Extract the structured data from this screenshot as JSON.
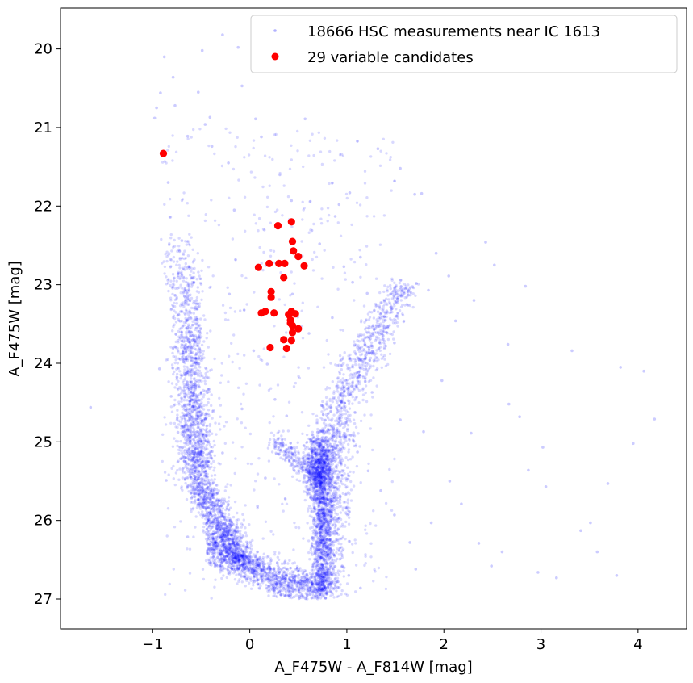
{
  "chart_data": {
    "type": "scatter",
    "xlabel": "A_F475W - A_F814W [mag]",
    "ylabel": "A_F475W [mag]",
    "xlim": [
      -1.95,
      4.5
    ],
    "ylim": [
      27.38,
      19.48
    ],
    "y_inverted": true,
    "grid": false,
    "x_ticks": [
      -1,
      0,
      1,
      2,
      3,
      4
    ],
    "x_tick_labels": [
      "−1",
      "0",
      "1",
      "2",
      "3",
      "4"
    ],
    "y_ticks": [
      20,
      21,
      22,
      23,
      24,
      25,
      26,
      27
    ],
    "y_tick_labels": [
      "20",
      "21",
      "22",
      "23",
      "24",
      "25",
      "26",
      "27"
    ],
    "legend_position": "top-right",
    "series": [
      {
        "name": "18666 HSC measurements near IC 1613",
        "color": "#0000ff",
        "marker": "point",
        "alpha": 0.15,
        "count": 18666,
        "sampled_points": [
          [
            -1.64,
            24.56
          ],
          [
            4.17,
            24.71
          ],
          [
            4.06,
            24.1
          ],
          [
            3.82,
            24.05
          ],
          [
            3.58,
            26.4
          ],
          [
            3.78,
            26.7
          ],
          [
            3.41,
            26.13
          ],
          [
            3.51,
            26.03
          ],
          [
            3.16,
            26.73
          ],
          [
            3.05,
            25.57
          ],
          [
            2.97,
            26.66
          ],
          [
            2.52,
            22.75
          ],
          [
            2.31,
            23.2
          ],
          [
            2.67,
            24.52
          ],
          [
            2.6,
            26.4
          ],
          [
            2.49,
            26.58
          ],
          [
            2.87,
            25.36
          ],
          [
            2.78,
            24.68
          ],
          [
            2.43,
            22.46
          ],
          [
            2.05,
            22.89
          ],
          [
            2.12,
            23.46
          ],
          [
            1.98,
            24.22
          ],
          [
            2.06,
            25.5
          ],
          [
            1.71,
            26.62
          ],
          [
            1.32,
            21.27
          ],
          [
            1.03,
            21.83
          ],
          [
            1.7,
            21.85
          ],
          [
            1.77,
            21.84
          ],
          [
            0.97,
            22.77
          ],
          [
            1.14,
            22.65
          ],
          [
            -0.08,
            20.47
          ],
          [
            -0.49,
            20.02
          ],
          [
            -0.12,
            19.98
          ],
          [
            -0.41,
            20.87
          ],
          [
            0.06,
            20.89
          ],
          [
            0.57,
            20.89
          ],
          [
            -0.28,
            19.82
          ],
          [
            0.43,
            21.93
          ],
          [
            0.85,
            23.42
          ],
          [
            -0.79,
            20.36
          ],
          [
            -0.88,
            20.1
          ],
          [
            -0.77,
            20.72
          ],
          [
            -0.64,
            21.11
          ],
          [
            -0.53,
            20.55
          ],
          [
            -0.46,
            20.96
          ],
          [
            -0.39,
            21.24
          ],
          [
            -0.22,
            21.45
          ],
          [
            -0.16,
            22.05
          ],
          [
            0.12,
            21.12
          ],
          [
            0.31,
            21.6
          ],
          [
            0.64,
            22.31
          ],
          [
            0.72,
            22.48
          ],
          [
            0.88,
            22.13
          ],
          [
            0.92,
            21.98
          ],
          [
            1.06,
            22.97
          ],
          [
            1.21,
            23.11
          ],
          [
            1.49,
            23.74
          ],
          [
            1.63,
            23.26
          ],
          [
            1.84,
            23.07
          ],
          [
            1.92,
            22.6
          ],
          [
            -0.98,
            20.88
          ],
          [
            -0.96,
            20.75
          ],
          [
            -0.92,
            20.56
          ],
          [
            -0.84,
            21.7
          ],
          [
            -0.7,
            22.44
          ],
          [
            -0.62,
            22.79
          ],
          [
            -0.55,
            23.2
          ],
          [
            0.04,
            23.84
          ],
          [
            0.18,
            24.01
          ],
          [
            0.26,
            24.46
          ],
          [
            -0.08,
            24.58
          ],
          [
            0.38,
            24.67
          ],
          [
            1.11,
            25.13
          ],
          [
            1.22,
            25.37
          ],
          [
            1.35,
            25.62
          ],
          [
            1.49,
            25.93
          ],
          [
            1.65,
            26.28
          ],
          [
            1.87,
            26.03
          ],
          [
            2.18,
            25.79
          ],
          [
            2.28,
            24.89
          ],
          [
            1.79,
            24.87
          ],
          [
            1.55,
            24.72
          ],
          [
            0.46,
            26.77
          ],
          [
            0.62,
            26.86
          ],
          [
            0.32,
            26.94
          ],
          [
            1.02,
            26.7
          ],
          [
            1.14,
            26.86
          ],
          [
            -0.93,
            24.07
          ],
          [
            -0.81,
            24.42
          ],
          [
            -0.74,
            24.88
          ],
          [
            -0.86,
            25.49
          ],
          [
            -0.64,
            26.21
          ],
          [
            0.16,
            25.46
          ],
          [
            0.08,
            25.82
          ],
          [
            -0.28,
            25.14
          ],
          [
            2.84,
            23.02
          ],
          [
            3.32,
            23.84
          ],
          [
            3.02,
            25.07
          ],
          [
            3.69,
            25.53
          ],
          [
            3.95,
            25.02
          ],
          [
            1.55,
            21.52
          ],
          [
            2.66,
            23.76
          ],
          [
            -0.21,
            23.12
          ],
          [
            0.44,
            23.12
          ],
          [
            0.61,
            23.62
          ],
          [
            0.94,
            24.03
          ],
          [
            1.26,
            24.37
          ],
          [
            2.36,
            26.29
          ]
        ]
      },
      {
        "name": "29 variable candidates",
        "color": "#ff0000",
        "marker": "circle",
        "count": 29,
        "points": [
          [
            -0.89,
            21.33
          ],
          [
            0.43,
            22.2
          ],
          [
            0.29,
            22.25
          ],
          [
            0.44,
            22.45
          ],
          [
            0.45,
            22.57
          ],
          [
            0.5,
            22.64
          ],
          [
            0.2,
            22.73
          ],
          [
            0.3,
            22.73
          ],
          [
            0.36,
            22.73
          ],
          [
            0.09,
            22.78
          ],
          [
            0.56,
            22.76
          ],
          [
            0.35,
            22.91
          ],
          [
            0.22,
            23.09
          ],
          [
            0.22,
            23.16
          ],
          [
            0.12,
            23.36
          ],
          [
            0.16,
            23.34
          ],
          [
            0.25,
            23.36
          ],
          [
            0.4,
            23.38
          ],
          [
            0.43,
            23.34
          ],
          [
            0.47,
            23.37
          ],
          [
            0.42,
            23.49
          ],
          [
            0.44,
            23.52
          ],
          [
            0.42,
            23.45
          ],
          [
            0.5,
            23.56
          ],
          [
            0.44,
            23.61
          ],
          [
            0.35,
            23.7
          ],
          [
            0.43,
            23.71
          ],
          [
            0.21,
            23.8
          ],
          [
            0.38,
            23.81
          ]
        ]
      }
    ]
  }
}
